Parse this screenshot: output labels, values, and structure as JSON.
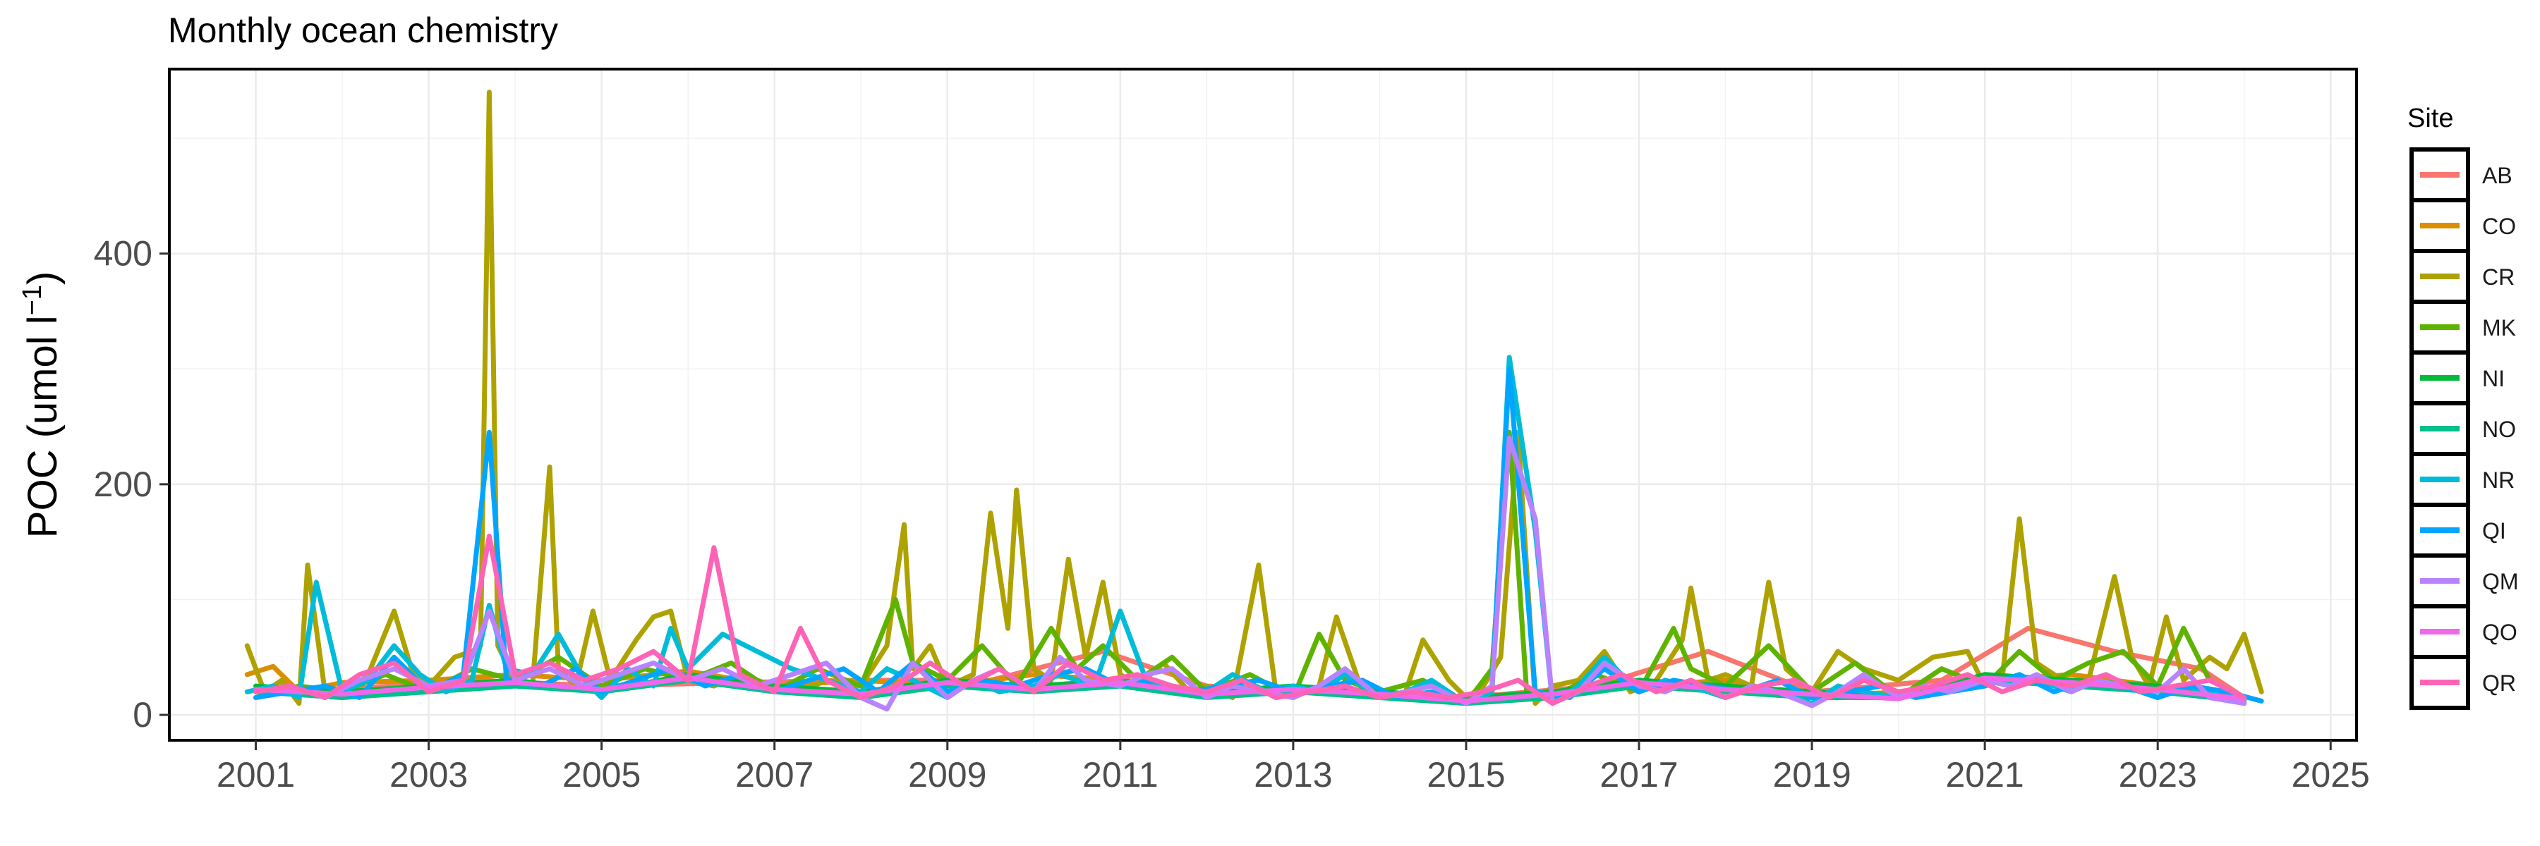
{
  "chart_data": {
    "type": "line",
    "title": "Monthly ocean chemistry",
    "xlabel": "",
    "ylabel": "POC (umol l",
    "ylabel_superscript": "−1",
    "ylabel_close": ")",
    "xlim": [
      2000.0,
      2025.3
    ],
    "ylim": [
      -22,
      560
    ],
    "x_ticks": [
      2001,
      2003,
      2005,
      2007,
      2009,
      2011,
      2013,
      2015,
      2017,
      2019,
      2021,
      2023,
      2025
    ],
    "y_ticks": [
      0,
      200,
      400
    ],
    "grid": true,
    "legend": {
      "title": "Site",
      "position": "right"
    },
    "series": [
      {
        "name": "AB",
        "color": "#F8766D",
        "x": [
          2001.3,
          2002.0,
          2003.5,
          2005.0,
          2006.5,
          2008.0,
          2009.5,
          2010.8,
          2012.0,
          2013.5,
          2015.0,
          2016.5,
          2017.8,
          2019.0,
          2020.5,
          2021.5,
          2022.5,
          2023.5,
          2024.0
        ],
        "y": [
          25,
          22,
          30,
          25,
          28,
          30,
          30,
          55,
          25,
          20,
          15,
          25,
          55,
          20,
          30,
          75,
          55,
          40,
          15
        ]
      },
      {
        "name": "CO",
        "color": "#DB8E00",
        "x": [
          2000.9,
          2001.2,
          2001.5,
          2002.0,
          2003.0,
          2004.0,
          2005.0,
          2006.0,
          2007.0,
          2008.0,
          2009.0,
          2010.0,
          2011.0,
          2012.0,
          2013.0,
          2014.0,
          2015.0,
          2016.0,
          2017.0,
          2018.0,
          2019.0,
          2020.0,
          2021.0,
          2022.0,
          2023.0,
          2024.0
        ],
        "y": [
          35,
          42,
          20,
          28,
          30,
          35,
          30,
          38,
          25,
          30,
          25,
          35,
          30,
          20,
          20,
          18,
          15,
          20,
          25,
          30,
          15,
          20,
          30,
          35,
          25,
          15
        ]
      },
      {
        "name": "CR",
        "color": "#AEA200",
        "x": [
          2000.9,
          2001.1,
          2001.3,
          2001.5,
          2001.6,
          2001.8,
          2002.0,
          2002.3,
          2002.6,
          2002.8,
          2003.0,
          2003.3,
          2003.5,
          2003.6,
          2003.7,
          2003.8,
          2004.0,
          2004.2,
          2004.4,
          2004.5,
          2004.7,
          2004.9,
          2005.1,
          2005.4,
          2005.6,
          2005.8,
          2006.0,
          2006.3,
          2006.6,
          2007.0,
          2007.3,
          2007.6,
          2008.0,
          2008.3,
          2008.5,
          2008.6,
          2008.8,
          2009.0,
          2009.3,
          2009.5,
          2009.7,
          2009.8,
          2010.0,
          2010.2,
          2010.4,
          2010.6,
          2010.8,
          2011.0,
          2011.2,
          2011.5,
          2011.8,
          2012.0,
          2012.3,
          2012.6,
          2012.8,
          2013.0,
          2013.3,
          2013.5,
          2013.8,
          2014.0,
          2014.3,
          2014.5,
          2014.8,
          2015.0,
          2015.2,
          2015.4,
          2015.6,
          2015.8,
          2016.0,
          2016.3,
          2016.6,
          2016.9,
          2017.2,
          2017.5,
          2017.6,
          2017.8,
          2018.0,
          2018.3,
          2018.5,
          2018.7,
          2019.0,
          2019.3,
          2019.6,
          2020.0,
          2020.4,
          2020.8,
          2021.0,
          2021.2,
          2021.4,
          2021.6,
          2021.9,
          2022.2,
          2022.5,
          2022.7,
          2022.9,
          2023.1,
          2023.3,
          2023.6,
          2023.8,
          2024.0,
          2024.2
        ],
        "y": [
          60,
          20,
          30,
          10,
          130,
          20,
          15,
          35,
          90,
          40,
          25,
          50,
          55,
          60,
          540,
          60,
          30,
          25,
          215,
          40,
          25,
          90,
          30,
          65,
          85,
          90,
          30,
          25,
          35,
          25,
          20,
          30,
          25,
          60,
          165,
          40,
          60,
          25,
          35,
          175,
          75,
          195,
          40,
          30,
          135,
          50,
          115,
          35,
          25,
          45,
          20,
          25,
          15,
          130,
          20,
          15,
          25,
          85,
          20,
          15,
          20,
          65,
          30,
          15,
          25,
          50,
          245,
          10,
          25,
          30,
          55,
          20,
          30,
          65,
          110,
          30,
          35,
          25,
          115,
          40,
          20,
          55,
          40,
          30,
          50,
          55,
          25,
          30,
          170,
          45,
          30,
          30,
          120,
          50,
          25,
          85,
          30,
          50,
          40,
          70,
          20
        ]
      },
      {
        "name": "MK",
        "color": "#5EB300",
        "x": [
          2001.0,
          2001.5,
          2002.0,
          2002.5,
          2003.0,
          2003.5,
          2004.0,
          2004.5,
          2005.0,
          2005.5,
          2006.0,
          2006.5,
          2007.0,
          2007.5,
          2008.0,
          2008.4,
          2008.6,
          2009.0,
          2009.4,
          2009.8,
          2010.2,
          2010.5,
          2010.8,
          2011.2,
          2011.6,
          2012.0,
          2012.5,
          2013.0,
          2013.3,
          2013.6,
          2014.0,
          2014.5,
          2015.0,
          2015.3,
          2015.5,
          2015.7,
          2016.0,
          2016.5,
          2017.0,
          2017.4,
          2017.6,
          2018.0,
          2018.5,
          2019.0,
          2019.5,
          2020.0,
          2020.5,
          2021.0,
          2021.4,
          2021.8,
          2022.2,
          2022.6,
          2023.0,
          2023.3,
          2023.6,
          2024.0
        ],
        "y": [
          15,
          25,
          20,
          35,
          20,
          40,
          30,
          50,
          25,
          40,
          30,
          45,
          20,
          40,
          25,
          100,
          45,
          30,
          60,
          25,
          75,
          40,
          60,
          30,
          50,
          20,
          35,
          15,
          70,
          30,
          20,
          30,
          10,
          40,
          245,
          20,
          15,
          35,
          20,
          75,
          40,
          25,
          60,
          20,
          45,
          15,
          40,
          25,
          55,
          30,
          45,
          55,
          25,
          75,
          30,
          15
        ]
      },
      {
        "name": "NI",
        "color": "#00BA38",
        "x": [
          2001.0,
          2002.0,
          2003.0,
          2004.0,
          2005.0,
          2006.0,
          2007.0,
          2008.0,
          2009.0,
          2010.0,
          2011.0,
          2012.0,
          2013.0,
          2014.0,
          2015.0,
          2016.0,
          2017.0,
          2018.0,
          2019.0,
          2020.0,
          2021.0,
          2022.0,
          2023.0,
          2024.0
        ],
        "y": [
          25,
          20,
          25,
          30,
          20,
          35,
          25,
          20,
          30,
          25,
          30,
          20,
          25,
          20,
          15,
          20,
          30,
          25,
          20,
          15,
          35,
          30,
          25,
          15
        ]
      },
      {
        "name": "NO",
        "color": "#00C08B",
        "x": [
          2001.0,
          2002.0,
          2003.0,
          2004.0,
          2005.0,
          2006.0,
          2007.0,
          2008.0,
          2009.0,
          2010.0,
          2011.0,
          2012.0,
          2013.0,
          2014.0,
          2015.0,
          2016.0,
          2017.0,
          2018.0,
          2019.0,
          2020.0,
          2021.0,
          2022.0,
          2023.0,
          2024.0
        ],
        "y": [
          20,
          15,
          20,
          25,
          20,
          30,
          20,
          15,
          25,
          20,
          25,
          15,
          20,
          15,
          10,
          15,
          25,
          20,
          15,
          15,
          30,
          25,
          20,
          12
        ]
      },
      {
        "name": "NR",
        "color": "#00BCD8",
        "x": [
          2000.9,
          2001.2,
          2001.5,
          2001.7,
          2002.0,
          2002.3,
          2002.6,
          2002.9,
          2003.2,
          2003.5,
          2003.7,
          2003.9,
          2004.2,
          2004.5,
          2004.8,
          2005.0,
          2005.3,
          2005.6,
          2005.8,
          2006.0,
          2006.4,
          2006.8,
          2007.2,
          2007.6,
          2008.0,
          2008.3,
          2008.6,
          2009.0,
          2009.3,
          2009.6,
          2010.0,
          2010.3,
          2010.7,
          2011.0,
          2011.3,
          2011.6,
          2012.0,
          2012.3,
          2012.7,
          2013.0,
          2013.3,
          2013.6,
          2014.0,
          2014.3,
          2014.6,
          2015.0,
          2015.3,
          2015.5,
          2015.8,
          2016.0,
          2016.3,
          2016.6,
          2017.0,
          2017.3,
          2017.6,
          2018.0,
          2018.3,
          2018.6,
          2019.0,
          2019.3,
          2019.6,
          2020.0,
          2020.3,
          2020.6,
          2021.0,
          2021.3,
          2021.6,
          2022.0,
          2022.3,
          2022.6,
          2023.0,
          2023.3,
          2023.6,
          2024.0
        ],
        "y": [
          20,
          25,
          15,
          115,
          20,
          30,
          60,
          35,
          20,
          30,
          95,
          40,
          35,
          70,
          30,
          15,
          40,
          25,
          75,
          40,
          70,
          55,
          40,
          30,
          20,
          40,
          30,
          15,
          30,
          20,
          25,
          35,
          25,
          90,
          30,
          25,
          20,
          35,
          20,
          25,
          20,
          35,
          15,
          20,
          30,
          10,
          20,
          310,
          160,
          10,
          25,
          50,
          20,
          30,
          25,
          15,
          25,
          20,
          10,
          25,
          20,
          15,
          25,
          20,
          30,
          25,
          30,
          20,
          30,
          25,
          15,
          25,
          20,
          10
        ]
      },
      {
        "name": "QI",
        "color": "#00A5FF",
        "x": [
          2001.0,
          2001.4,
          2001.8,
          2002.2,
          2002.6,
          2003.0,
          2003.4,
          2003.7,
          2003.9,
          2004.3,
          2004.7,
          2005.0,
          2005.4,
          2005.8,
          2006.2,
          2006.6,
          2007.0,
          2007.4,
          2007.8,
          2008.2,
          2008.6,
          2009.0,
          2009.4,
          2009.8,
          2010.2,
          2010.6,
          2011.0,
          2011.4,
          2011.8,
          2012.2,
          2012.6,
          2013.0,
          2013.4,
          2013.8,
          2014.2,
          2014.6,
          2015.0,
          2015.3,
          2015.5,
          2015.8,
          2016.2,
          2016.6,
          2017.0,
          2017.4,
          2017.8,
          2018.2,
          2018.6,
          2019.0,
          2019.4,
          2019.8,
          2020.2,
          2020.6,
          2021.0,
          2021.4,
          2021.8,
          2022.2,
          2022.6,
          2023.0,
          2023.4,
          2023.8,
          2024.2
        ],
        "y": [
          15,
          20,
          25,
          15,
          50,
          20,
          35,
          245,
          30,
          25,
          40,
          20,
          30,
          40,
          25,
          35,
          20,
          30,
          40,
          20,
          45,
          20,
          30,
          25,
          35,
          40,
          25,
          30,
          20,
          25,
          30,
          20,
          25,
          30,
          15,
          20,
          10,
          25,
          300,
          20,
          15,
          40,
          20,
          30,
          25,
          20,
          30,
          15,
          20,
          25,
          15,
          20,
          25,
          35,
          20,
          30,
          25,
          15,
          25,
          20,
          12
        ]
      },
      {
        "name": "QM",
        "color": "#B983FF",
        "x": [
          2001.0,
          2001.4,
          2001.8,
          2002.2,
          2002.6,
          2003.0,
          2003.4,
          2003.7,
          2004.0,
          2004.4,
          2004.8,
          2005.2,
          2005.6,
          2006.0,
          2006.4,
          2006.8,
          2007.2,
          2007.6,
          2008.0,
          2008.3,
          2008.6,
          2009.0,
          2009.3,
          2009.6,
          2010.0,
          2010.3,
          2010.6,
          2011.0,
          2011.3,
          2011.6,
          2012.0,
          2012.3,
          2012.6,
          2013.0,
          2013.3,
          2013.6,
          2014.0,
          2014.3,
          2014.6,
          2015.0,
          2015.3,
          2015.5,
          2015.8,
          2016.0,
          2016.3,
          2016.6,
          2017.0,
          2017.3,
          2017.6,
          2018.0,
          2018.3,
          2018.6,
          2019.0,
          2019.3,
          2019.6,
          2020.0,
          2020.3,
          2020.6,
          2021.0,
          2021.3,
          2021.6,
          2022.0,
          2022.3,
          2022.6,
          2023.0,
          2023.3,
          2023.6,
          2024.0
        ],
        "y": [
          20,
          25,
          15,
          30,
          40,
          25,
          30,
          90,
          30,
          40,
          25,
          35,
          45,
          30,
          40,
          25,
          35,
          45,
          15,
          5,
          45,
          15,
          30,
          40,
          20,
          50,
          30,
          25,
          35,
          40,
          15,
          25,
          20,
          15,
          25,
          40,
          15,
          20,
          25,
          10,
          25,
          240,
          170,
          10,
          20,
          45,
          25,
          20,
          30,
          15,
          25,
          20,
          8,
          20,
          35,
          15,
          25,
          20,
          30,
          25,
          35,
          20,
          30,
          25,
          20,
          40,
          15,
          10
        ]
      },
      {
        "name": "QO",
        "color": "#EF67EB",
        "x": [
          2001.0,
          2002.0,
          2003.0,
          2004.0,
          2005.0,
          2006.0,
          2007.0,
          2008.0,
          2009.0,
          2010.0,
          2011.0,
          2012.0,
          2013.0,
          2014.0,
          2015.0,
          2016.0,
          2017.0,
          2018.0,
          2019.0,
          2020.0,
          2021.0,
          2022.0,
          2023.0,
          2024.0
        ],
        "y": [
          22,
          18,
          24,
          28,
          22,
          32,
          22,
          18,
          28,
          22,
          28,
          18,
          22,
          18,
          12,
          18,
          28,
          22,
          18,
          14,
          32,
          28,
          22,
          14
        ]
      },
      {
        "name": "QR",
        "color": "#FF63B6",
        "x": [
          2001.0,
          2001.4,
          2001.8,
          2002.2,
          2002.6,
          2003.0,
          2003.4,
          2003.7,
          2004.0,
          2004.4,
          2004.8,
          2005.2,
          2005.6,
          2006.0,
          2006.3,
          2006.6,
          2007.0,
          2007.3,
          2007.6,
          2008.0,
          2008.4,
          2008.8,
          2009.2,
          2009.6,
          2010.0,
          2010.4,
          2010.8,
          2011.2,
          2011.6,
          2012.0,
          2012.4,
          2012.8,
          2013.2,
          2013.6,
          2014.0,
          2014.4,
          2014.8,
          2015.2,
          2015.6,
          2016.0,
          2016.4,
          2016.8,
          2017.2,
          2017.6,
          2018.0,
          2018.4,
          2018.8,
          2019.2,
          2019.6,
          2020.0,
          2020.4,
          2020.8,
          2021.2,
          2021.6,
          2022.0,
          2022.4,
          2022.8,
          2023.2,
          2023.6,
          2024.0
        ],
        "y": [
          20,
          25,
          15,
          35,
          45,
          20,
          30,
          155,
          35,
          45,
          30,
          40,
          55,
          30,
          145,
          35,
          20,
          75,
          30,
          15,
          25,
          45,
          25,
          40,
          20,
          45,
          30,
          35,
          25,
          20,
          30,
          15,
          20,
          25,
          15,
          20,
          15,
          20,
          30,
          10,
          25,
          35,
          20,
          30,
          15,
          25,
          30,
          15,
          30,
          20,
          25,
          35,
          20,
          30,
          25,
          35,
          20,
          25,
          30,
          15
        ]
      }
    ]
  }
}
